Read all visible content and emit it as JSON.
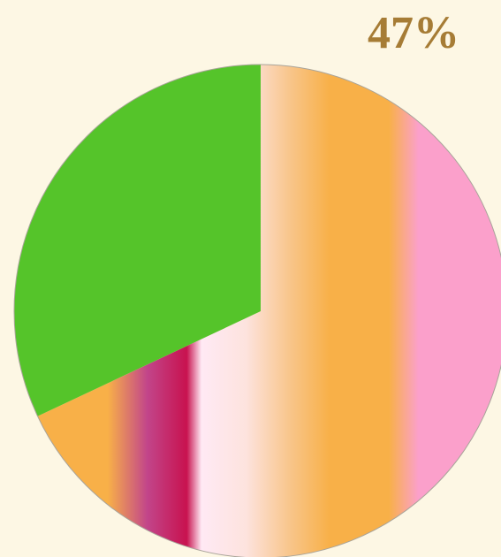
{
  "chart_data": {
    "type": "pie",
    "annotation": "47%",
    "categories": [
      null,
      null
    ],
    "values": [
      68,
      32
    ],
    "colors": [
      "#f8b048",
      "#55c42a"
    ]
  }
}
